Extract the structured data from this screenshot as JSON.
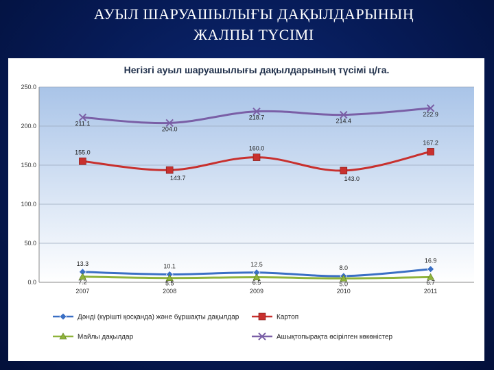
{
  "slide": {
    "title_line1": "АУЫЛ ШАРУАШЫЛЫҒЫ ДАҚЫЛДАРЫНЫҢ",
    "title_line2": "ЖАЛПЫ ТҮСІМІ"
  },
  "colors": {
    "background": "#061a55",
    "plot_top": "#a9c4e8",
    "plot_bottom": "#ffffff",
    "grid": "#9aa8bd"
  },
  "chart_data": {
    "type": "line",
    "title": "Негізгі ауыл шаруашылығы дақылдарының түсімі ц/га.",
    "xlabel": "",
    "ylabel": "",
    "categories": [
      "2007",
      "2008",
      "2009",
      "2010",
      "2011"
    ],
    "ylim": [
      0,
      250
    ],
    "yticks": [
      "0.0",
      "50.0",
      "100.0",
      "150.0",
      "200.0",
      "250.0"
    ],
    "grid": true,
    "legend_position": "bottom",
    "series": [
      {
        "name": "Дәнді (күріштi қосқанда) және бұршақты дақылдар",
        "values": [
          13.3,
          10.1,
          12.5,
          8.0,
          16.9
        ],
        "labels": [
          "13.3",
          "10.1",
          "12.5",
          "8.0",
          "16.9"
        ],
        "color": "#3a6fc4",
        "marker": "diamond"
      },
      {
        "name": "Картоп",
        "values": [
          155.0,
          143.7,
          160.0,
          143.0,
          167.2
        ],
        "labels": [
          "155.0",
          "143.7",
          "160.0",
          "143.0",
          "167.2"
        ],
        "color": "#c8302e",
        "marker": "square"
      },
      {
        "name": "Майлы дақылдар",
        "values": [
          7.2,
          5.5,
          6.5,
          5.0,
          6.7
        ],
        "labels": [
          "7.2",
          "5.5",
          "6.5",
          "5.0",
          "6.7"
        ],
        "color": "#8fb33a",
        "marker": "triangle"
      },
      {
        "name": "Ашықтопырақта өсірілген көкөністер",
        "values": [
          211.1,
          204.0,
          218.7,
          214.4,
          222.9
        ],
        "labels": [
          "211.1",
          "204.0",
          "218.7",
          "214.4",
          "222.9"
        ],
        "color": "#7a5fa6",
        "marker": "x"
      }
    ]
  }
}
